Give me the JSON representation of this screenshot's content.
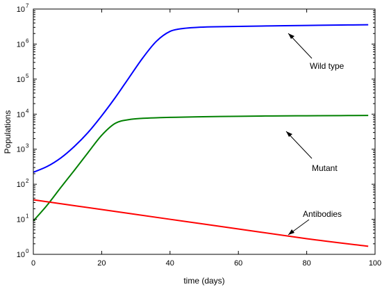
{
  "chart_data": {
    "type": "line",
    "title": "",
    "xlabel": "time (days)",
    "ylabel": "Populations",
    "xlim": [
      0,
      100
    ],
    "ylim": [
      1,
      10000000
    ],
    "yscale": "log",
    "grid": false,
    "legend": "none",
    "x_ticks": [
      "0",
      "20",
      "40",
      "60",
      "80",
      "100"
    ],
    "y_ticks": [
      {
        "base": "10",
        "exp": "0"
      },
      {
        "base": "10",
        "exp": "1"
      },
      {
        "base": "10",
        "exp": "2"
      },
      {
        "base": "10",
        "exp": "3"
      },
      {
        "base": "10",
        "exp": "4"
      },
      {
        "base": "10",
        "exp": "5"
      },
      {
        "base": "10",
        "exp": "6"
      },
      {
        "base": "10",
        "exp": "7"
      }
    ],
    "series": [
      {
        "name": "Wild type",
        "color": "#0000ff",
        "x": [
          0,
          4,
          8,
          12,
          16,
          20,
          24,
          28,
          32,
          36,
          40,
          44,
          48,
          52,
          60,
          70,
          80,
          90,
          98
        ],
        "y": [
          220,
          320,
          560,
          1200,
          3000,
          9000,
          30000,
          110000,
          400000,
          1200000,
          2300000,
          2800000,
          3000000,
          3100000,
          3200000,
          3300000,
          3400000,
          3500000,
          3550000
        ]
      },
      {
        "name": "Mutant",
        "color": "#008000",
        "x": [
          0,
          4,
          8,
          12,
          16,
          20,
          24,
          28,
          32,
          36,
          40,
          48,
          60,
          70,
          80,
          90,
          98
        ],
        "y": [
          9,
          25,
          80,
          250,
          800,
          2500,
          5500,
          7000,
          7600,
          7900,
          8100,
          8400,
          8700,
          8900,
          9000,
          9100,
          9200
        ]
      },
      {
        "name": "Antibodies",
        "color": "#ff0000",
        "x": [
          0,
          20,
          40,
          60,
          80,
          98
        ],
        "y": [
          36,
          19,
          10,
          5.3,
          2.8,
          1.7
        ]
      }
    ],
    "annotations": [
      {
        "text": "Wild type",
        "target_series": 0
      },
      {
        "text": "Mutant",
        "target_series": 1
      },
      {
        "text": "Antibodies",
        "target_series": 2
      }
    ]
  }
}
